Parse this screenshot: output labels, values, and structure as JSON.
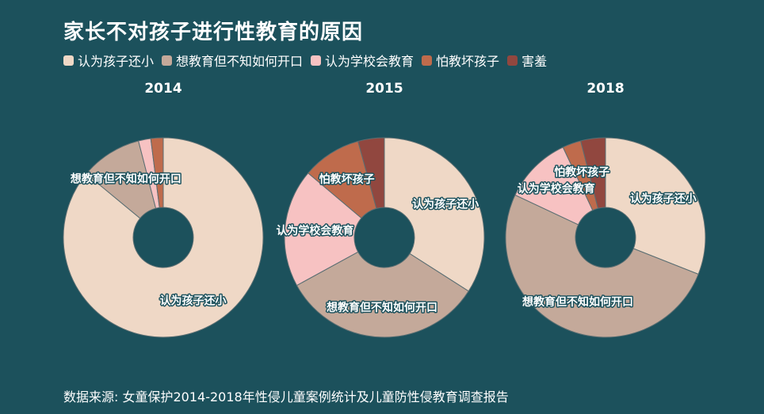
{
  "title": "家长不对孩子进行性教育的原因",
  "source": "数据来源: 女童保护2014-2018年性侵儿童案例统计及儿童防性侵教育调查报告",
  "chart_data": {
    "type": "pie",
    "variant": "donut",
    "title": "家长不对孩子进行性教育的原因",
    "legend_position": "top-left",
    "categories": [
      "认为孩子还小",
      "想教育但不知如何开口",
      "认为学校会教育",
      "怕教坏孩子",
      "害羞"
    ],
    "colors": [
      "#efd8c6",
      "#c4a99a",
      "#f7c2c2",
      "#bf6b4c",
      "#91473f"
    ],
    "charts": [
      {
        "year": "2014",
        "values": [
          86,
          10,
          2,
          2,
          0
        ],
        "labels": [
          "认为孩子还小",
          "想教育但不知如何开口",
          "",
          "",
          ""
        ]
      },
      {
        "year": "2015",
        "values": [
          32,
          31,
          18,
          9,
          4
        ],
        "labels": [
          "认为孩子还小",
          "想教育但不知如何开口",
          "认为学校会教育",
          "怕教坏孩子",
          ""
        ]
      },
      {
        "year": "2018",
        "values": [
          31,
          51,
          11,
          3,
          4
        ],
        "labels": [
          "认为孩子还小",
          "想教育但不知如何开口",
          "认为学校会教育",
          "怕教坏孩子",
          ""
        ]
      }
    ]
  }
}
